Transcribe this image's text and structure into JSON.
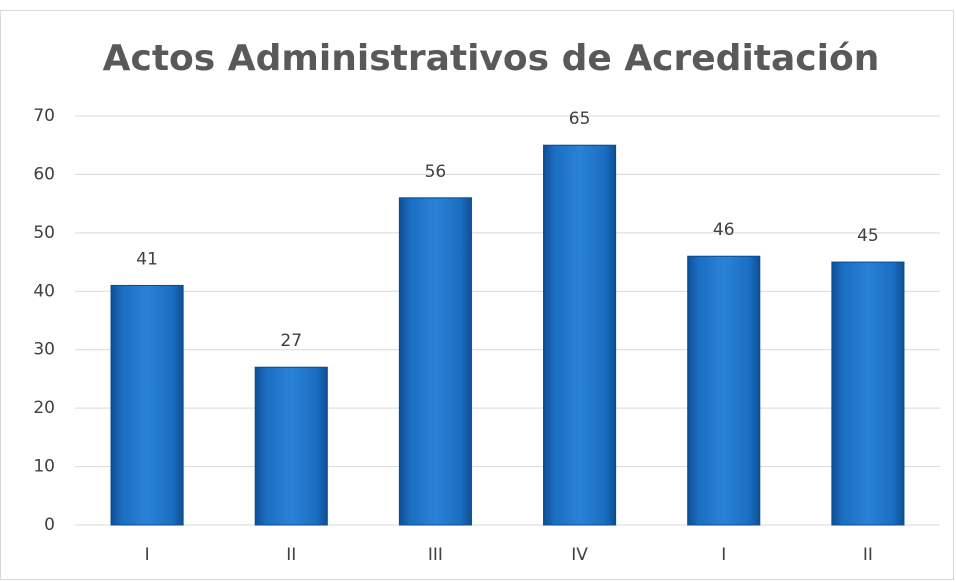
{
  "chart_data": {
    "type": "bar",
    "title": "Actos Administrativos de Acreditación",
    "categories": [
      "I",
      "II",
      "III",
      "IV",
      "I",
      "II"
    ],
    "values": [
      41,
      27,
      56,
      65,
      46,
      45
    ],
    "color": "#1b6ec2",
    "ylim": [
      0,
      70
    ],
    "yticks": [
      0,
      10,
      20,
      30,
      40,
      50,
      60,
      70
    ],
    "grid": true
  }
}
